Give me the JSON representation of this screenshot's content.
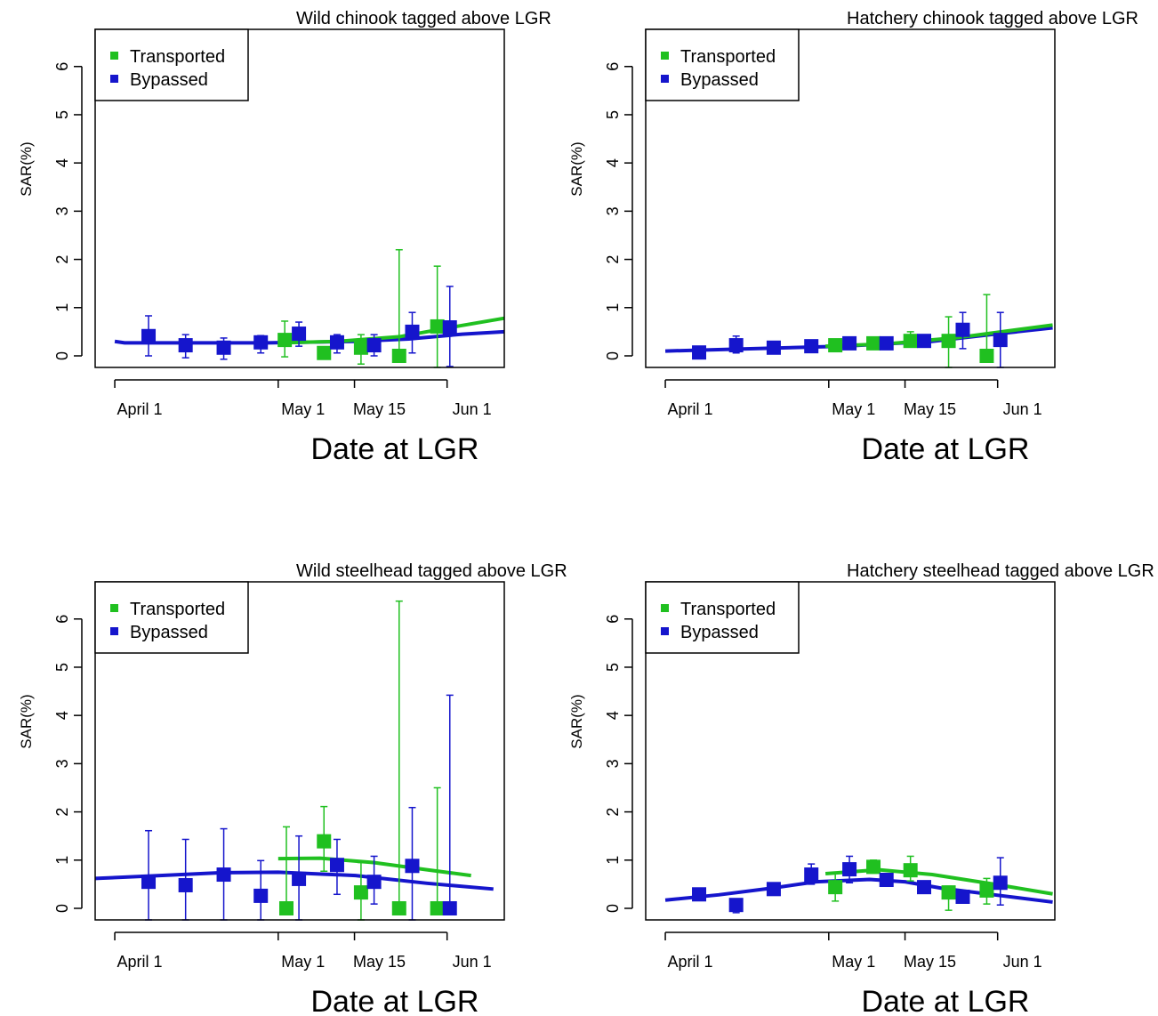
{
  "chart_data": [
    {
      "type": "scatter",
      "title": "Wild chinook tagged above LGR",
      "xlabel": "Date at LGR",
      "ylabel": "SAR(%)",
      "xlim": [
        87.4,
        162.5
      ],
      "ylim": [
        -0.24,
        6.77
      ],
      "xticks": [
        {
          "value": 91,
          "label": "April 1"
        },
        {
          "value": 121,
          "label": "May 1"
        },
        {
          "value": 135,
          "label": "May 15"
        },
        {
          "value": 152,
          "label": "Jun 1"
        }
      ],
      "yticks": [
        0,
        1,
        2,
        3,
        4,
        5,
        6
      ],
      "legend": "top-left",
      "series": [
        {
          "name": "Transported",
          "color": "#20c020",
          "x": [
            122.2,
            129.4,
            136.2,
            143.2,
            150.2
          ],
          "values": [
            0.33,
            0.06,
            0.17,
            0.0,
            0.61
          ],
          "lower": [
            -0.02,
            null,
            -0.17,
            0.0,
            -0.24
          ],
          "upper": [
            0.72,
            null,
            0.44,
            2.2,
            1.86
          ]
        },
        {
          "name": "Bypassed",
          "color": "#1515cc",
          "x": [
            97.2,
            104,
            111,
            117.8,
            124.8,
            131.8,
            138.6,
            145.6,
            152.5
          ],
          "values": [
            0.41,
            0.22,
            0.17,
            0.28,
            0.46,
            0.28,
            0.22,
            0.5,
            0.59
          ],
          "lower": [
            0.0,
            -0.04,
            -0.07,
            0.06,
            0.2,
            0.06,
            0.0,
            0.06,
            -0.22
          ],
          "upper": [
            0.83,
            0.44,
            0.37,
            0.42,
            0.7,
            0.44,
            0.44,
            0.9,
            1.44
          ]
        }
      ],
      "fits": [
        {
          "color": "#1515cc",
          "x": [
            91,
            92.8,
            118.9,
            135.2,
            145,
            154.8,
            162.5
          ],
          "values": [
            0.3,
            0.27,
            0.27,
            0.3,
            0.35,
            0.45,
            0.5
          ]
        },
        {
          "color": "#20c020",
          "x": [
            121,
            131.9,
            143.4,
            153.2,
            162.5
          ],
          "values": [
            0.27,
            0.3,
            0.4,
            0.6,
            0.78
          ]
        }
      ]
    },
    {
      "type": "scatter",
      "title": "Hatchery chinook tagged above LGR",
      "xlabel": "Date at LGR",
      "ylabel": "SAR(%)",
      "xlim": [
        87.4,
        162.5
      ],
      "ylim": [
        -0.24,
        6.77
      ],
      "xticks": [
        {
          "value": 91,
          "label": "April 1"
        },
        {
          "value": 121,
          "label": "May 1"
        },
        {
          "value": 135,
          "label": "May 15"
        },
        {
          "value": 152,
          "label": "Jun 1"
        }
      ],
      "yticks": [
        0,
        1,
        2,
        3,
        4,
        5,
        6
      ],
      "legend": "top-left",
      "series": [
        {
          "name": "Transported",
          "color": "#20c020",
          "x": [
            122.2,
            129.2,
            136,
            143,
            150
          ],
          "values": [
            0.22,
            0.26,
            0.31,
            0.31,
            0.0
          ],
          "lower": [
            null,
            null,
            0.18,
            -0.24,
            0.0
          ],
          "upper": [
            null,
            null,
            0.5,
            0.81,
            1.27
          ]
        },
        {
          "name": "Bypassed",
          "color": "#1515cc",
          "x": [
            97.2,
            104,
            110.9,
            117.8,
            124.8,
            131.6,
            138.5,
            145.6,
            152.5
          ],
          "values": [
            0.07,
            0.22,
            0.17,
            0.2,
            0.26,
            0.26,
            0.31,
            0.54,
            0.33
          ],
          "lower": [
            null,
            0.06,
            null,
            null,
            null,
            null,
            0.2,
            0.15,
            -0.24
          ],
          "upper": [
            null,
            0.41,
            null,
            null,
            null,
            null,
            0.41,
            0.9,
            0.9
          ]
        }
      ],
      "fits": [
        {
          "color": "#1515cc",
          "x": [
            91,
            107.3,
            123.6,
            139.9,
            151.4,
            162.1
          ],
          "values": [
            0.1,
            0.15,
            0.2,
            0.3,
            0.45,
            0.58
          ]
        },
        {
          "color": "#20c020",
          "x": [
            120.4,
            131.8,
            144.8,
            162.1
          ],
          "values": [
            0.2,
            0.25,
            0.38,
            0.64
          ]
        }
      ]
    },
    {
      "type": "scatter",
      "title": "Wild steelhead tagged above LGR",
      "xlabel": "Date at LGR",
      "ylabel": "SAR(%)",
      "xlim": [
        87.4,
        162.5
      ],
      "ylim": [
        -0.24,
        6.77
      ],
      "xticks": [
        {
          "value": 91,
          "label": "April 1"
        },
        {
          "value": 121,
          "label": "May 1"
        },
        {
          "value": 135,
          "label": "May 15"
        },
        {
          "value": 152,
          "label": "Jun 1"
        }
      ],
      "yticks": [
        0,
        1,
        2,
        3,
        4,
        5,
        6
      ],
      "legend": "top-left",
      "series": [
        {
          "name": "Transported",
          "color": "#20c020",
          "x": [
            122.5,
            129.4,
            136.2,
            143.2,
            150.2
          ],
          "values": [
            0.0,
            1.39,
            0.33,
            0.0,
            0.0
          ],
          "lower": [
            0.0,
            0.77,
            -0.24,
            0.0,
            0.0
          ],
          "upper": [
            1.69,
            2.11,
            0.95,
            6.37,
            2.5
          ]
        },
        {
          "name": "Bypassed",
          "color": "#1515cc",
          "x": [
            97.2,
            104,
            111,
            117.8,
            124.8,
            131.8,
            138.6,
            145.6,
            152.5
          ],
          "values": [
            0.55,
            0.48,
            0.7,
            0.26,
            0.61,
            0.9,
            0.55,
            0.88,
            0.0
          ],
          "lower": [
            -0.24,
            -0.24,
            -0.24,
            -0.24,
            -0.24,
            0.29,
            0.09,
            -0.24,
            0.0
          ],
          "upper": [
            1.61,
            1.43,
            1.65,
            0.99,
            1.5,
            1.43,
            1.08,
            2.09,
            4.42
          ]
        }
      ],
      "fits": [
        {
          "color": "#1515cc",
          "x": [
            87.4,
            99.3,
            110.7,
            121,
            135.2,
            148.3,
            160.5
          ],
          "values": [
            0.62,
            0.68,
            0.74,
            0.75,
            0.68,
            0.52,
            0.4
          ]
        },
        {
          "color": "#20c020",
          "x": [
            121,
            128.7,
            138.5,
            148.3,
            156.4
          ],
          "values": [
            1.03,
            1.04,
            0.95,
            0.8,
            0.68
          ]
        }
      ]
    },
    {
      "type": "scatter",
      "title": "Hatchery steelhead tagged above LGR",
      "xlabel": "Date at LGR",
      "ylabel": "SAR(%)",
      "xlim": [
        87.4,
        162.5
      ],
      "ylim": [
        -0.24,
        6.77
      ],
      "xticks": [
        {
          "value": 91,
          "label": "April 1"
        },
        {
          "value": 121,
          "label": "May 1"
        },
        {
          "value": 135,
          "label": "May 15"
        },
        {
          "value": 152,
          "label": "Jun 1"
        }
      ],
      "yticks": [
        0,
        1,
        2,
        3,
        4,
        5,
        6
      ],
      "legend": "top-left",
      "series": [
        {
          "name": "Transported",
          "color": "#20c020",
          "x": [
            122.2,
            129.2,
            136,
            143,
            150
          ],
          "values": [
            0.44,
            0.86,
            0.79,
            0.33,
            0.37
          ],
          "lower": [
            0.15,
            0.73,
            0.57,
            -0.04,
            0.09
          ],
          "upper": [
            0.73,
            1.0,
            1.08,
            0.46,
            0.62
          ]
        },
        {
          "name": "Bypassed",
          "color": "#1515cc",
          "x": [
            97.2,
            104,
            110.9,
            117.8,
            124.8,
            131.6,
            138.5,
            145.6,
            152.5
          ],
          "values": [
            0.29,
            0.07,
            0.4,
            0.7,
            0.81,
            0.59,
            0.44,
            0.24,
            0.53
          ],
          "lower": [
            null,
            -0.09,
            null,
            0.5,
            0.53,
            null,
            null,
            null,
            0.07
          ],
          "upper": [
            null,
            0.18,
            null,
            0.92,
            1.08,
            null,
            null,
            null,
            1.05
          ]
        }
      ],
      "fits": [
        {
          "color": "#1515cc",
          "x": [
            91,
            100.8,
            110.6,
            118.7,
            128.5,
            135,
            141.6,
            151.4,
            162.1
          ],
          "values": [
            0.17,
            0.28,
            0.42,
            0.55,
            0.6,
            0.55,
            0.42,
            0.28,
            0.13
          ]
        },
        {
          "color": "#20c020",
          "x": [
            120.4,
            130.2,
            140,
            151.4,
            162.1
          ],
          "values": [
            0.72,
            0.8,
            0.7,
            0.5,
            0.3
          ]
        }
      ]
    }
  ]
}
